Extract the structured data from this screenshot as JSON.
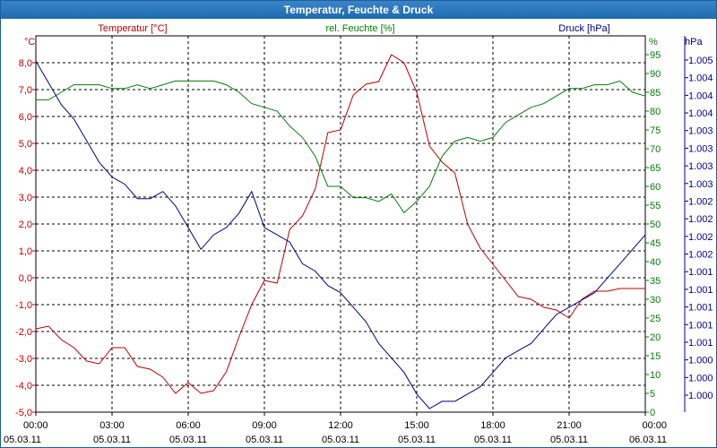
{
  "window": {
    "title": "Temperatur, Feuchte & Druck"
  },
  "colors": {
    "temperature": "#c00000",
    "humidity": "#008000",
    "pressure": "#00008b",
    "grid": "#000000"
  },
  "chart_data": {
    "type": "line",
    "title": "Temperatur, Feuchte & Druck",
    "grid": true,
    "x_ticks": [
      {
        "time": "00:00",
        "date": "05.03.11"
      },
      {
        "time": "03:00",
        "date": "05.03.11"
      },
      {
        "time": "06:00",
        "date": "05.03.11"
      },
      {
        "time": "09:00",
        "date": "05.03.11"
      },
      {
        "time": "12:00",
        "date": "05.03.11"
      },
      {
        "time": "15:00",
        "date": "05.03.11"
      },
      {
        "time": "18:00",
        "date": "05.03.11"
      },
      {
        "time": "21:00",
        "date": "05.03.11"
      },
      {
        "time": "00:00",
        "date": "06.03.11"
      }
    ],
    "xlim_hours": [
      0,
      24
    ],
    "axes": {
      "temperature": {
        "label": "Temperatur [°C]",
        "unit": "°C",
        "ylim": [
          -5,
          9
        ],
        "tick_values": [
          -5,
          -4,
          -3,
          -2,
          -1,
          0,
          1,
          2,
          3,
          4,
          5,
          6,
          7,
          8
        ],
        "tick_labels": [
          "-5,0",
          "-4,0",
          "-3,0",
          "-2,0",
          "-1,0",
          "0,0",
          "1,0",
          "2,0",
          "3,0",
          "4,0",
          "5,0",
          "6,0",
          "7,0",
          "8,0"
        ]
      },
      "humidity": {
        "label": "rel. Feuchte [%]",
        "unit": "%",
        "ylim": [
          0,
          100
        ],
        "tick_values": [
          0,
          5,
          10,
          15,
          20,
          25,
          30,
          35,
          40,
          45,
          50,
          55,
          60,
          65,
          70,
          75,
          80,
          85,
          90,
          95
        ],
        "tick_labels": [
          "0",
          "5",
          "10",
          "15",
          "20",
          "25",
          "30",
          "35",
          "40",
          "45",
          "50",
          "55",
          "60",
          "65",
          "70",
          "75",
          "80",
          "85",
          "90",
          "95"
        ]
      },
      "pressure": {
        "label": "Druck [hPa]",
        "unit": "hPa",
        "tick_labels": [
          "1.000",
          "1.000",
          "1.000",
          "1.001",
          "1.001",
          "1.001",
          "1.001",
          "1.001",
          "1.002",
          "1.002",
          "1.002",
          "1.002",
          "1.003",
          "1.003",
          "1.003",
          "1.003",
          "1.004",
          "1.004",
          "1.004",
          "1.005"
        ]
      }
    },
    "series": [
      {
        "name": "Temperatur [°C]",
        "axis": "temperature",
        "x": [
          0,
          0.5,
          1,
          1.5,
          2,
          2.5,
          3,
          3.5,
          4,
          4.5,
          5,
          5.5,
          6,
          6.5,
          7,
          7.5,
          8,
          8.5,
          9,
          9.5,
          10,
          10.5,
          11,
          11.5,
          12,
          12.5,
          13,
          13.5,
          14,
          14.5,
          15,
          15.5,
          16,
          16.5,
          17,
          17.5,
          18,
          18.5,
          19,
          19.5,
          20,
          20.5,
          21,
          21.5,
          22,
          22.5,
          23,
          23.5,
          24
        ],
        "y": [
          -1.9,
          -1.8,
          -2.3,
          -2.6,
          -3.1,
          -3.2,
          -2.6,
          -2.6,
          -3.3,
          -3.4,
          -3.7,
          -4.3,
          -3.9,
          -4.3,
          -4.2,
          -3.5,
          -2.2,
          -1.0,
          -0.1,
          -0.2,
          1.8,
          2.3,
          3.3,
          5.4,
          5.5,
          6.8,
          7.2,
          7.3,
          8.3,
          8.0,
          6.9,
          4.9,
          4.3,
          3.9,
          2.0,
          1.1,
          0.5,
          -0.1,
          -0.7,
          -0.8,
          -1.1,
          -1.2,
          -1.5,
          -0.8,
          -0.5,
          -0.5,
          -0.4,
          -0.4,
          -0.4
        ]
      },
      {
        "name": "rel. Feuchte [%]",
        "axis": "humidity",
        "x": [
          0,
          0.5,
          1,
          1.5,
          2,
          2.5,
          3,
          3.5,
          4,
          4.5,
          5,
          5.5,
          6,
          6.5,
          7,
          7.5,
          8,
          8.5,
          9,
          9.5,
          10,
          10.5,
          11,
          11.5,
          12,
          12.5,
          13,
          13.5,
          14,
          14.5,
          15,
          15.5,
          16,
          16.5,
          17,
          17.5,
          18,
          18.5,
          19,
          19.5,
          20,
          20.5,
          21,
          21.5,
          22,
          22.5,
          23,
          23.5,
          24
        ],
        "y": [
          83,
          83,
          85,
          87,
          87,
          87,
          86,
          86,
          87,
          86,
          87,
          88,
          88,
          88,
          88,
          87,
          85,
          82,
          81,
          80,
          76,
          73,
          68,
          60,
          60,
          57,
          57,
          56,
          58,
          53,
          56,
          60,
          68,
          72,
          73,
          72,
          73,
          77,
          79,
          81,
          82,
          84,
          86,
          86,
          87,
          87,
          88,
          85,
          84
        ]
      },
      {
        "name": "Druck [hPa]",
        "axis": "pressure",
        "x": [
          0,
          0.5,
          1,
          1.5,
          2,
          2.5,
          3,
          3.5,
          4,
          4.5,
          5,
          5.5,
          6,
          6.5,
          7,
          7.5,
          8,
          8.5,
          9,
          9.5,
          10,
          10.5,
          11,
          11.5,
          12,
          12.5,
          13,
          13.5,
          14,
          14.5,
          15,
          15.5,
          16,
          16.5,
          17,
          17.5,
          18,
          18.5,
          19,
          19.5,
          20,
          20.5,
          21,
          21.5,
          22,
          22.5,
          23,
          23.5,
          24
        ],
        "y": [
          1.0048,
          1.0045,
          1.0042,
          1.004,
          1.0037,
          1.0034,
          1.0032,
          1.0031,
          1.0029,
          1.0029,
          1.003,
          1.0028,
          1.0025,
          1.0022,
          1.0024,
          1.0025,
          1.0027,
          1.003,
          1.0025,
          1.0024,
          1.0023,
          1.002,
          1.0019,
          1.0017,
          1.0016,
          1.0014,
          1.0012,
          1.0009,
          1.0007,
          1.0005,
          1.0002,
          1.0,
          1.0001,
          1.0001,
          1.0002,
          1.0003,
          1.0005,
          1.0007,
          1.0008,
          1.0009,
          1.0011,
          1.0013,
          1.0014,
          1.0015,
          1.0016,
          1.0018,
          1.002,
          1.0022,
          1.0024
        ]
      }
    ]
  }
}
